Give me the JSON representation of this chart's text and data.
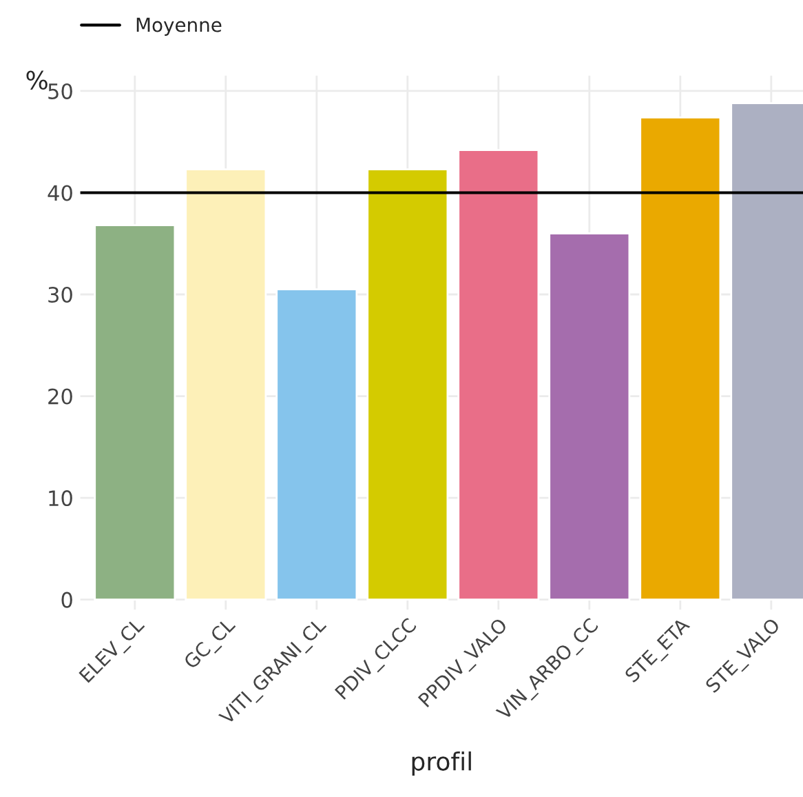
{
  "chart_data": {
    "type": "bar",
    "xlabel": "profil",
    "ylabel": "%",
    "categories": [
      "ELEV_CL",
      "GC_CL",
      "VITI_GRANI_CL",
      "PDIV_CLCC",
      "PPDIV_VALO",
      "VIN_ARBO_CC",
      "STE_ETA",
      "STE_VALO"
    ],
    "values": [
      36.8,
      42.3,
      30.5,
      42.3,
      44.2,
      36.0,
      47.4,
      48.8
    ],
    "colors": [
      "#8db183",
      "#fdf0b8",
      "#85c4ec",
      "#d4cb00",
      "#e96e88",
      "#a56dad",
      "#eaa900",
      "#acb0c2"
    ],
    "ylim": [
      -1,
      51.5
    ],
    "yticks": [
      0,
      10,
      20,
      30,
      40,
      50
    ],
    "ref_lines": [
      {
        "axis": "y",
        "value": 40,
        "label": "Moyenne",
        "color": "#000000",
        "line_style": "solid"
      }
    ],
    "grid": true,
    "legend": "top left"
  }
}
